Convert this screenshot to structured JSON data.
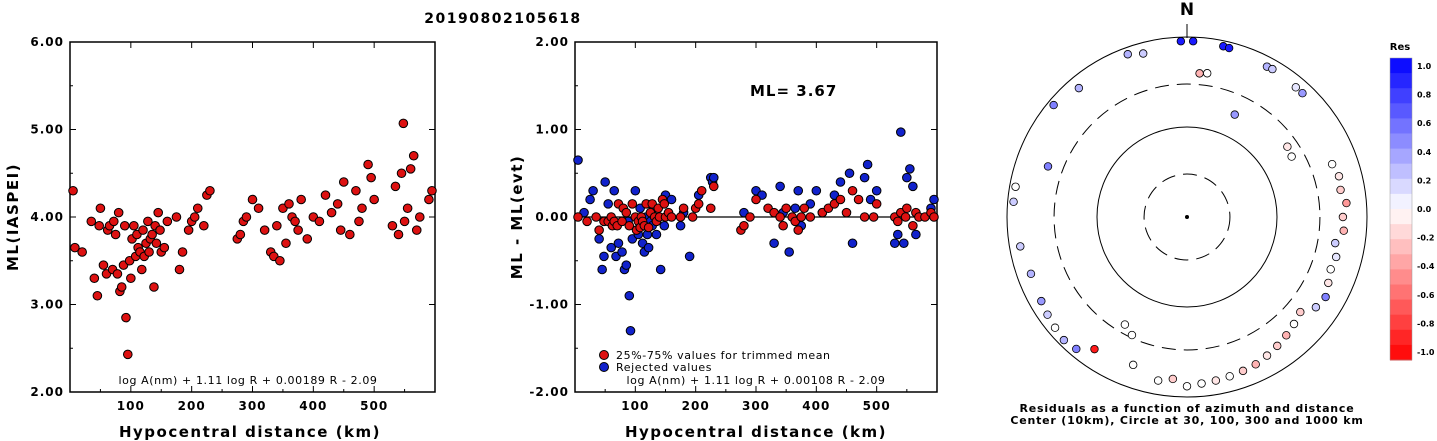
{
  "title": "20190802105618",
  "left_panel": {
    "ylabel": "ML(IASPEI)",
    "xlabel": "Hypocentral distance (km)",
    "yticks": [
      "6.00",
      "5.00",
      "4.00",
      "3.00",
      "2.00"
    ],
    "xticks": [
      "100",
      "200",
      "300",
      "400",
      "500"
    ],
    "formula": "log A(nm) + 1.11 log R + 0.00189 R - 2.09"
  },
  "middle_panel": {
    "ylabel": "ML - ML(evt)",
    "xlabel": "Hypocentral distance (km)",
    "yticks": [
      "2.00",
      "1.00",
      "0.00",
      "-1.00",
      "-2.00"
    ],
    "xticks": [
      "100",
      "200",
      "300",
      "400",
      "500"
    ],
    "ml_label": "ML= 3.67",
    "legend_trimmed": "25%-75% values for trimmed mean",
    "legend_rejected": "Rejected values",
    "formula": "log A(nm) + 1.11 log R + 0.00108 R - 2.09"
  },
  "right_panel": {
    "north": "N",
    "caption_line1": "Residuals as a function of azimuth and distance",
    "caption_line2": "Center (10km), Circle at 30, 100, 300 and 1000 km",
    "colorbar_title": "Res",
    "colorbar_ticks": [
      "1.0",
      "0.8",
      "0.6",
      "0.4",
      "0.2",
      "0.0",
      "-0.2",
      "-0.4",
      "-0.6",
      "-0.8",
      "-1.0"
    ]
  },
  "colors": {
    "trimmed": "#dd1111",
    "rejected": "#1122cc"
  },
  "chart_data": [
    {
      "type": "scatter",
      "title": "20190802105618",
      "xlabel": "Hypocentral distance (km)",
      "ylabel": "ML(IASPEI)",
      "xlim": [
        0,
        600
      ],
      "ylim": [
        2.0,
        6.0
      ],
      "x": [
        5,
        8,
        20,
        35,
        40,
        45,
        48,
        50,
        55,
        60,
        62,
        65,
        70,
        72,
        75,
        78,
        80,
        82,
        85,
        88,
        90,
        92,
        95,
        98,
        100,
        102,
        105,
        108,
        110,
        112,
        115,
        118,
        120,
        122,
        125,
        128,
        130,
        132,
        135,
        138,
        140,
        142,
        145,
        148,
        150,
        155,
        160,
        175,
        180,
        185,
        195,
        200,
        205,
        210,
        220,
        225,
        230,
        275,
        280,
        285,
        290,
        300,
        310,
        320,
        330,
        335,
        340,
        345,
        350,
        355,
        360,
        365,
        370,
        375,
        380,
        390,
        400,
        410,
        420,
        430,
        440,
        445,
        450,
        460,
        470,
        475,
        480,
        490,
        495,
        500,
        530,
        535,
        540,
        545,
        548,
        550,
        555,
        560,
        565,
        570,
        575,
        590,
        595
      ],
      "y": [
        4.3,
        3.65,
        3.6,
        3.95,
        3.3,
        3.1,
        3.9,
        4.1,
        3.45,
        3.35,
        3.85,
        3.9,
        3.4,
        3.95,
        3.8,
        3.35,
        4.05,
        3.15,
        3.2,
        3.45,
        3.9,
        2.85,
        2.43,
        3.5,
        3.3,
        3.75,
        3.9,
        3.55,
        3.8,
        3.65,
        3.6,
        3.4,
        3.85,
        3.55,
        3.7,
        3.95,
        3.6,
        3.75,
        3.8,
        3.2,
        3.9,
        3.7,
        4.05,
        3.85,
        3.6,
        3.65,
        3.95,
        4.0,
        3.4,
        3.6,
        3.85,
        3.95,
        4.0,
        4.1,
        3.9,
        4.25,
        4.3,
        3.75,
        3.8,
        3.95,
        4.0,
        4.2,
        4.1,
        3.85,
        3.6,
        3.55,
        3.9,
        3.5,
        4.1,
        3.7,
        4.15,
        4.0,
        3.95,
        3.85,
        4.2,
        3.75,
        4.0,
        3.95,
        4.25,
        4.05,
        4.15,
        3.85,
        4.4,
        3.8,
        4.3,
        3.95,
        4.1,
        4.6,
        4.45,
        4.2,
        3.9,
        4.35,
        3.8,
        4.5,
        5.07,
        3.95,
        4.1,
        4.55,
        4.7,
        3.85,
        4.0,
        4.2,
        4.3
      ]
    },
    {
      "type": "scatter",
      "title": "ML= 3.67",
      "xlabel": "Hypocentral distance (km)",
      "ylabel": "ML - ML(evt)",
      "xlim": [
        0,
        600
      ],
      "ylim": [
        -2.0,
        2.0
      ],
      "reference_line": 0.0,
      "series": [
        {
          "name": "25%-75% values for trimmed mean",
          "x": [
            5,
            20,
            35,
            40,
            48,
            55,
            60,
            62,
            65,
            70,
            72,
            78,
            80,
            85,
            90,
            95,
            100,
            102,
            105,
            108,
            110,
            112,
            115,
            118,
            122,
            125,
            128,
            132,
            135,
            138,
            140,
            145,
            148,
            150,
            155,
            160,
            175,
            180,
            195,
            200,
            205,
            210,
            225,
            230,
            275,
            280,
            290,
            300,
            320,
            330,
            340,
            345,
            350,
            360,
            365,
            370,
            375,
            380,
            390,
            410,
            420,
            430,
            440,
            450,
            460,
            470,
            480,
            495,
            500,
            530,
            535,
            540,
            548,
            550,
            560,
            565,
            570,
            580,
            590,
            595
          ],
          "y": [
            0.0,
            -0.05,
            0.0,
            -0.15,
            -0.05,
            -0.05,
            0.0,
            -0.1,
            -0.05,
            -0.1,
            0.15,
            -0.05,
            0.1,
            0.05,
            -0.1,
            0.15,
            0.0,
            -0.15,
            -0.05,
            -0.12,
            0.0,
            -0.05,
            -0.1,
            0.15,
            -0.12,
            0.05,
            0.15,
            0.0,
            -0.05,
            0.1,
            0.0,
            0.2,
            0.15,
            0.0,
            0.05,
            0.0,
            0.0,
            0.1,
            0.0,
            0.1,
            0.15,
            0.3,
            0.1,
            0.35,
            -0.15,
            -0.1,
            0.0,
            0.2,
            0.1,
            0.05,
            0.0,
            -0.1,
            0.1,
            0.0,
            -0.05,
            -0.15,
            0.0,
            0.1,
            0.0,
            0.05,
            0.1,
            0.15,
            0.2,
            0.05,
            0.3,
            0.2,
            0.0,
            0.0,
            0.15,
            0.0,
            -0.05,
            0.05,
            0.0,
            0.1,
            -0.1,
            0.05,
            0.0,
            0.0,
            0.05,
            0.0
          ]
        },
        {
          "name": "Rejected values",
          "x": [
            5,
            15,
            25,
            30,
            40,
            45,
            48,
            50,
            55,
            60,
            65,
            68,
            72,
            78,
            82,
            85,
            88,
            90,
            92,
            95,
            100,
            105,
            108,
            112,
            115,
            118,
            120,
            122,
            125,
            128,
            130,
            135,
            142,
            148,
            150,
            160,
            175,
            180,
            190,
            205,
            225,
            228,
            230,
            280,
            300,
            310,
            330,
            340,
            345,
            355,
            365,
            370,
            375,
            390,
            400,
            410,
            430,
            440,
            455,
            460,
            480,
            485,
            490,
            500,
            530,
            535,
            540,
            545,
            550,
            555,
            560,
            565,
            590,
            595
          ],
          "y": [
            0.65,
            0.05,
            0.2,
            0.3,
            -0.25,
            -0.6,
            -0.45,
            0.4,
            0.15,
            -0.35,
            0.3,
            -0.45,
            -0.3,
            -0.4,
            -0.6,
            -0.55,
            -0.05,
            -0.9,
            -1.3,
            -0.25,
            0.3,
            -0.2,
            0.1,
            -0.3,
            -0.4,
            0.0,
            -0.2,
            -0.35,
            -0.05,
            -0.1,
            0.1,
            -0.2,
            -0.6,
            -0.1,
            0.25,
            0.2,
            -0.1,
            0.05,
            -0.45,
            0.25,
            0.45,
            0.4,
            0.45,
            0.05,
            0.3,
            0.25,
            -0.3,
            0.35,
            0.05,
            -0.4,
            0.1,
            0.3,
            -0.1,
            0.15,
            0.3,
            0.05,
            0.25,
            0.4,
            0.5,
            -0.3,
            0.45,
            0.6,
            0.2,
            0.3,
            -0.3,
            -0.2,
            0.97,
            -0.3,
            0.45,
            0.55,
            0.35,
            -0.2,
            0.1,
            0.2
          ]
        }
      ]
    },
    {
      "type": "scatter",
      "subtype": "polar",
      "description_axes": "azimuth (degrees from N) vs hypocentral distance (km), color = residual",
      "rings_km": [
        30,
        100,
        300,
        1000
      ],
      "colorbar_range": [
        -1.0,
        1.0
      ],
      "points": [
        {
          "az": 358,
          "dist": 900,
          "res": 0.9
        },
        {
          "az": 2,
          "dist": 900,
          "res": 0.9
        },
        {
          "az": 12,
          "dist": 870,
          "res": 0.9
        },
        {
          "az": 14,
          "dist": 860,
          "res": 0.9
        },
        {
          "az": 28,
          "dist": 780,
          "res": 0.3
        },
        {
          "az": 30,
          "dist": 790,
          "res": 0.2
        },
        {
          "az": 40,
          "dist": 760,
          "res": 0.1
        },
        {
          "az": 43,
          "dist": 760,
          "res": 0.4
        },
        {
          "az": 55,
          "dist": 230,
          "res": -0.1
        },
        {
          "az": 60,
          "dist": 220,
          "res": 0.0
        },
        {
          "az": 70,
          "dist": 520,
          "res": 0.0
        },
        {
          "az": 75,
          "dist": 560,
          "res": -0.1
        },
        {
          "az": 80,
          "dist": 540,
          "res": -0.2
        },
        {
          "az": 85,
          "dist": 600,
          "res": -0.4
        },
        {
          "az": 90,
          "dist": 540,
          "res": -0.2
        },
        {
          "az": 95,
          "dist": 560,
          "res": -0.3
        },
        {
          "az": 100,
          "dist": 470,
          "res": 0.2
        },
        {
          "az": 105,
          "dist": 520,
          "res": 0.1
        },
        {
          "az": 110,
          "dist": 500,
          "res": 0.0
        },
        {
          "az": 115,
          "dist": 540,
          "res": -0.1
        },
        {
          "az": 120,
          "dist": 600,
          "res": 0.5
        },
        {
          "az": 125,
          "dist": 560,
          "res": 0.2
        },
        {
          "az": 130,
          "dist": 440,
          "res": -0.2
        },
        {
          "az": 135,
          "dist": 480,
          "res": 0.0
        },
        {
          "az": 140,
          "dist": 520,
          "res": -0.3
        },
        {
          "az": 145,
          "dist": 560,
          "res": -0.2
        },
        {
          "az": 150,
          "dist": 600,
          "res": -0.1
        },
        {
          "az": 155,
          "dist": 640,
          "res": -0.3
        },
        {
          "az": 160,
          "dist": 660,
          "res": -0.2
        },
        {
          "az": 165,
          "dist": 680,
          "res": 0.0
        },
        {
          "az": 170,
          "dist": 700,
          "res": -0.1
        },
        {
          "az": 175,
          "dist": 720,
          "res": 0.0
        },
        {
          "az": 180,
          "dist": 760,
          "res": 0.0
        },
        {
          "az": 185,
          "dist": 640,
          "res": -0.2
        },
        {
          "az": 190,
          "dist": 700,
          "res": 0.0
        },
        {
          "az": 200,
          "dist": 560,
          "res": 0.0
        },
        {
          "az": 205,
          "dist": 280,
          "res": 0.0
        },
        {
          "az": 210,
          "dist": 240,
          "res": 0.0
        },
        {
          "az": 215,
          "dist": 620,
          "res": -0.9
        },
        {
          "az": 220,
          "dist": 820,
          "res": 0.5
        },
        {
          "az": 225,
          "dist": 860,
          "res": 0.3
        },
        {
          "az": 230,
          "dist": 820,
          "res": 0.0
        },
        {
          "az": 235,
          "dist": 780,
          "res": 0.2
        },
        {
          "az": 240,
          "dist": 740,
          "res": 0.4
        },
        {
          "az": 250,
          "dist": 700,
          "res": 0.3
        },
        {
          "az": 260,
          "dist": 760,
          "res": 0.2
        },
        {
          "az": 275,
          "dist": 860,
          "res": 0.2
        },
        {
          "az": 280,
          "dist": 860,
          "res": 0.0
        },
        {
          "az": 290,
          "dist": 440,
          "res": 0.5
        },
        {
          "az": 310,
          "dist": 860,
          "res": 0.5
        },
        {
          "az": 320,
          "dist": 740,
          "res": 0.3
        },
        {
          "az": 340,
          "dist": 840,
          "res": 0.3
        },
        {
          "az": 345,
          "dist": 760,
          "res": 0.2
        },
        {
          "az": 5,
          "dist": 400,
          "res": -0.3
        },
        {
          "az": 8,
          "dist": 410,
          "res": 0.0
        },
        {
          "az": 25,
          "dist": 180,
          "res": 0.4
        }
      ]
    }
  ]
}
